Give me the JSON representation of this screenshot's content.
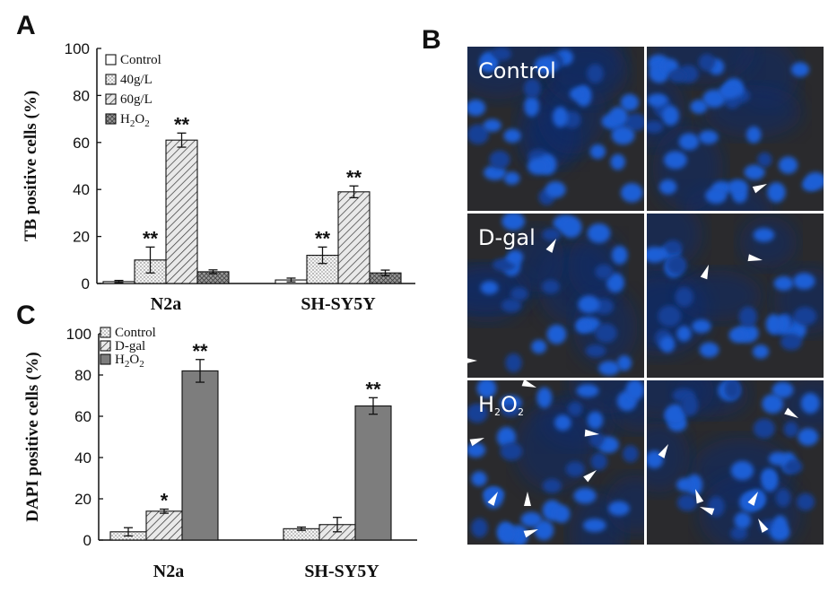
{
  "panels": {
    "a": "A",
    "b": "B",
    "c": "C"
  },
  "chart_data": [
    {
      "type": "bar",
      "panel": "A",
      "ylabel": "TB positive cells (%)",
      "ylim": [
        0,
        100
      ],
      "yticks": [
        0,
        20,
        40,
        60,
        80,
        100
      ],
      "categories": [
        "N2a",
        "SH-SY5Y"
      ],
      "legend_placement": "top-left",
      "series": [
        {
          "name": "Control",
          "values": [
            0.8,
            1.5
          ],
          "errors": [
            0.5,
            0.8
          ],
          "pattern": "open",
          "stars": [
            "",
            ""
          ]
        },
        {
          "name": "40g/L",
          "values": [
            10,
            12
          ],
          "errors": [
            5.5,
            3.5
          ],
          "pattern": "dots",
          "stars": [
            "**",
            "**"
          ]
        },
        {
          "name": "60g/L",
          "values": [
            61,
            39
          ],
          "errors": [
            3,
            2.5
          ],
          "pattern": "hatch",
          "stars": [
            "**",
            "**"
          ]
        },
        {
          "name": "H2O2",
          "values": [
            5,
            4.5
          ],
          "errors": [
            0.8,
            1.2
          ],
          "pattern": "cross",
          "stars": [
            "",
            ""
          ]
        }
      ]
    },
    {
      "type": "bar",
      "panel": "C",
      "ylabel": "DAPI positive cells (%)",
      "ylim": [
        0,
        100
      ],
      "yticks": [
        0,
        20,
        40,
        60,
        80,
        100
      ],
      "categories": [
        "N2a",
        "SH-SY5Y"
      ],
      "legend_placement": "top-left",
      "series": [
        {
          "name": "Control",
          "values": [
            4,
            5.5
          ],
          "errors": [
            2,
            0.8
          ],
          "pattern": "dots",
          "stars": [
            "",
            ""
          ]
        },
        {
          "name": "D-gal",
          "values": [
            14,
            7.5
          ],
          "errors": [
            1,
            3.5
          ],
          "pattern": "hatch",
          "stars": [
            "*",
            ""
          ]
        },
        {
          "name": "H2O2",
          "values": [
            82,
            65
          ],
          "errors": [
            5.5,
            4
          ],
          "pattern": "gray",
          "stars": [
            "**",
            "**"
          ]
        }
      ]
    }
  ],
  "micrographs": {
    "rows": [
      {
        "label": "Control"
      },
      {
        "label": "D-gal"
      },
      {
        "label": "H2O2"
      }
    ]
  },
  "colors": {
    "fluor_background": "#2a2a2d",
    "nucleus": "#1f5fd6",
    "nucleus_dim": "#173f96",
    "arrowhead": "#ffffff",
    "bar_gray": "#7d7d7d"
  }
}
